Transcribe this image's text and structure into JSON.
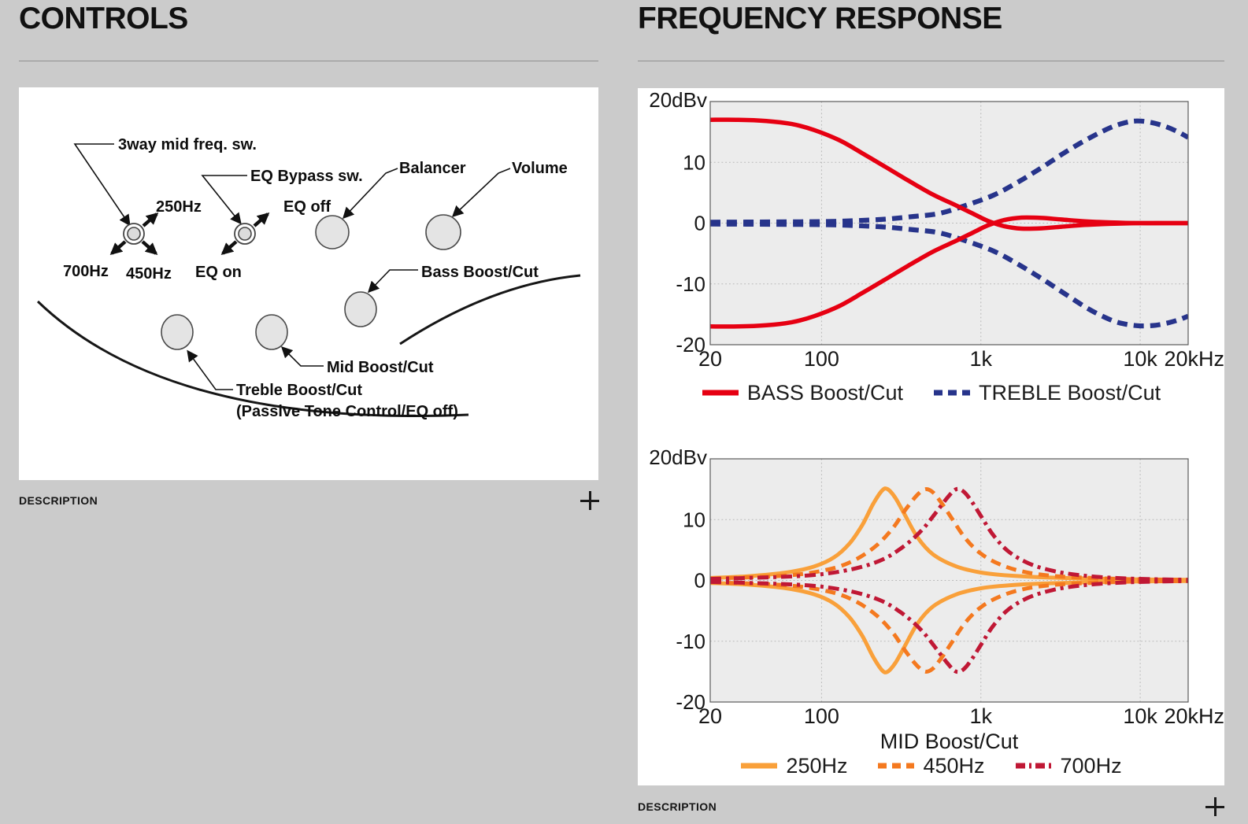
{
  "page": {
    "background": "#cbcbcb",
    "panel_background": "#ffffff"
  },
  "controls": {
    "title": "CONTROLS",
    "description_label": "DESCRIPTION",
    "expand_icon": "plus",
    "diagram": {
      "labels": {
        "threeway": "3way mid freq. sw.",
        "f250": "250Hz",
        "f700": "700Hz",
        "f450": "450Hz",
        "eq_bypass": "EQ Bypass sw.",
        "eq_off": "EQ off",
        "eq_on": "EQ on",
        "balancer": "Balancer",
        "volume": "Volume",
        "bass": "Bass Boost/Cut",
        "mid": "Mid Boost/Cut",
        "treble": "Treble Boost/Cut",
        "treble_note": "(Passive Tone Control/EQ off)"
      }
    }
  },
  "frequency_response": {
    "title": "FREQUENCY RESPONSE",
    "description_label": "DESCRIPTION",
    "expand_icon": "plus"
  },
  "chart_data": [
    {
      "type": "line",
      "xscale": "log",
      "xlim": [
        20,
        20000
      ],
      "ylim": [
        -20,
        20
      ],
      "y_unit_label": "20dBv",
      "y_ticks": [
        {
          "v": 10,
          "label": "10"
        },
        {
          "v": 0,
          "label": "0"
        },
        {
          "v": -10,
          "label": "-10"
        },
        {
          "v": -20,
          "label": "-20"
        }
      ],
      "x_ticks": [
        {
          "v": 20,
          "label": "20"
        },
        {
          "v": 100,
          "label": "100"
        },
        {
          "v": 1000,
          "label": "1k"
        },
        {
          "v": 10000,
          "label": "10k"
        },
        {
          "v": 20000,
          "label": "20kHz"
        }
      ],
      "grid_x": [
        100,
        1000,
        10000
      ],
      "grid_y": [
        10,
        0,
        -10
      ],
      "xlabel": "",
      "plot_bg": "#ececec",
      "series": [
        {
          "name": "TREBLE Boost",
          "color": "#27348B",
          "dash": "dashed",
          "width": 6.2,
          "points": [
            [
              20,
              0.15
            ],
            [
              50,
              0.2
            ],
            [
              100,
              0.25
            ],
            [
              160,
              0.4
            ],
            [
              250,
              0.65
            ],
            [
              380,
              1.1
            ],
            [
              550,
              1.6
            ],
            [
              800,
              2.9
            ],
            [
              1200,
              4.6
            ],
            [
              1700,
              6.7
            ],
            [
              2400,
              9.1
            ],
            [
              3400,
              11.7
            ],
            [
              4800,
              14.0
            ],
            [
              6500,
              15.7
            ],
            [
              8000,
              16.5
            ],
            [
              9500,
              16.8
            ],
            [
              11500,
              16.6
            ],
            [
              14000,
              16.0
            ],
            [
              17000,
              15.1
            ],
            [
              20000,
              14.1
            ]
          ]
        },
        {
          "name": "TREBLE Cut",
          "color": "#27348B",
          "dash": "dashed",
          "width": 6.2,
          "points": [
            [
              20,
              -0.15
            ],
            [
              50,
              -0.2
            ],
            [
              100,
              -0.25
            ],
            [
              160,
              -0.4
            ],
            [
              250,
              -0.65
            ],
            [
              380,
              -1.1
            ],
            [
              550,
              -1.6
            ],
            [
              800,
              -2.9
            ],
            [
              1200,
              -4.6
            ],
            [
              1700,
              -6.7
            ],
            [
              2400,
              -9.1
            ],
            [
              3400,
              -11.7
            ],
            [
              4800,
              -14.2
            ],
            [
              6500,
              -15.9
            ],
            [
              8000,
              -16.6
            ],
            [
              10000,
              -16.9
            ],
            [
              12500,
              -16.8
            ],
            [
              15000,
              -16.4
            ],
            [
              17500,
              -15.9
            ],
            [
              20000,
              -15.3
            ]
          ]
        },
        {
          "name": "BASS Boost",
          "color": "#E60012",
          "dash": "solid",
          "width": 5.5,
          "points": [
            [
              20,
              17
            ],
            [
              30,
              17
            ],
            [
              45,
              16.8
            ],
            [
              65,
              16.3
            ],
            [
              90,
              15.3
            ],
            [
              130,
              13.6
            ],
            [
              180,
              11.5
            ],
            [
              250,
              9.3
            ],
            [
              350,
              7.0
            ],
            [
              500,
              4.7
            ],
            [
              700,
              2.9
            ],
            [
              900,
              1.5
            ],
            [
              1100,
              0.4
            ],
            [
              1400,
              -0.5
            ],
            [
              1800,
              -0.9
            ],
            [
              2400,
              -0.85
            ],
            [
              3200,
              -0.6
            ],
            [
              4500,
              -0.3
            ],
            [
              6500,
              -0.12
            ],
            [
              10000,
              0
            ],
            [
              20000,
              0
            ]
          ]
        },
        {
          "name": "BASS Cut",
          "color": "#E60012",
          "dash": "solid",
          "width": 5.5,
          "points": [
            [
              20,
              -17
            ],
            [
              30,
              -17
            ],
            [
              45,
              -16.8
            ],
            [
              65,
              -16.3
            ],
            [
              90,
              -15.3
            ],
            [
              130,
              -13.6
            ],
            [
              180,
              -11.5
            ],
            [
              250,
              -9.3
            ],
            [
              350,
              -7.0
            ],
            [
              500,
              -4.7
            ],
            [
              700,
              -2.9
            ],
            [
              900,
              -1.5
            ],
            [
              1100,
              -0.4
            ],
            [
              1400,
              0.5
            ],
            [
              1800,
              0.9
            ],
            [
              2400,
              0.85
            ],
            [
              3200,
              0.6
            ],
            [
              4500,
              0.3
            ],
            [
              6500,
              0.12
            ],
            [
              10000,
              0
            ],
            [
              20000,
              0
            ]
          ]
        }
      ],
      "legend": [
        {
          "label": "BASS Boost/Cut",
          "color": "#E60012",
          "dash": "solid"
        },
        {
          "label": "TREBLE Boost/Cut",
          "color": "#27348B",
          "dash": "dashed"
        }
      ]
    },
    {
      "type": "line",
      "xscale": "log",
      "xlim": [
        20,
        20000
      ],
      "ylim": [
        -20,
        20
      ],
      "y_unit_label": "20dBv",
      "y_ticks": [
        {
          "v": 10,
          "label": "10"
        },
        {
          "v": 0,
          "label": "0"
        },
        {
          "v": -10,
          "label": "-10"
        },
        {
          "v": -20,
          "label": "-20"
        }
      ],
      "x_ticks": [
        {
          "v": 20,
          "label": "20"
        },
        {
          "v": 100,
          "label": "100"
        },
        {
          "v": 1000,
          "label": "1k"
        },
        {
          "v": 10000,
          "label": "10k"
        },
        {
          "v": 20000,
          "label": "20kHz"
        }
      ],
      "grid_x": [
        100,
        1000,
        10000
      ],
      "grid_y": [
        10,
        0,
        -10
      ],
      "xlabel": "MID Boost/Cut",
      "plot_bg": "#ececec",
      "series": [
        {
          "name": "250Hz Boost",
          "color": "#F9A03A",
          "dash": "solid",
          "width": 5,
          "points": [
            [
              20,
              0.4
            ],
            [
              35,
              0.7
            ],
            [
              60,
              1.3
            ],
            [
              90,
              2.3
            ],
            [
              120,
              3.8
            ],
            [
              150,
              6.1
            ],
            [
              180,
              9.1
            ],
            [
              210,
              12.5
            ],
            [
              240,
              14.8
            ],
            [
              260,
              15.0
            ],
            [
              290,
              13.6
            ],
            [
              330,
              11.0
            ],
            [
              400,
              7.1
            ],
            [
              500,
              4.3
            ],
            [
              700,
              2.3
            ],
            [
              1000,
              1.3
            ],
            [
              1500,
              0.8
            ],
            [
              2500,
              0.5
            ],
            [
              5000,
              0.3
            ],
            [
              10000,
              0.15
            ],
            [
              20000,
              0.1
            ]
          ]
        },
        {
          "name": "250Hz Cut",
          "color": "#F9A03A",
          "dash": "solid",
          "width": 5,
          "points": [
            [
              20,
              -0.4
            ],
            [
              35,
              -0.7
            ],
            [
              60,
              -1.3
            ],
            [
              90,
              -2.3
            ],
            [
              120,
              -3.8
            ],
            [
              150,
              -6.1
            ],
            [
              180,
              -9.1
            ],
            [
              210,
              -12.5
            ],
            [
              240,
              -14.8
            ],
            [
              260,
              -15.0
            ],
            [
              290,
              -13.6
            ],
            [
              330,
              -11.0
            ],
            [
              400,
              -7.1
            ],
            [
              500,
              -4.3
            ],
            [
              700,
              -2.3
            ],
            [
              1000,
              -1.3
            ],
            [
              1500,
              -0.8
            ],
            [
              2500,
              -0.5
            ],
            [
              5000,
              -0.3
            ],
            [
              10000,
              -0.15
            ],
            [
              20000,
              -0.1
            ]
          ]
        },
        {
          "name": "450Hz Boost",
          "color": "#F4791F",
          "dash": "dashed",
          "width": 5,
          "points": [
            [
              20,
              0.3
            ],
            [
              60,
              0.8
            ],
            [
              110,
              1.8
            ],
            [
              160,
              3.3
            ],
            [
              220,
              5.7
            ],
            [
              280,
              8.6
            ],
            [
              340,
              11.8
            ],
            [
              400,
              14.1
            ],
            [
              450,
              15.0
            ],
            [
              500,
              14.5
            ],
            [
              560,
              12.9
            ],
            [
              650,
              10.4
            ],
            [
              800,
              6.9
            ],
            [
              1000,
              4.4
            ],
            [
              1300,
              2.7
            ],
            [
              1800,
              1.5
            ],
            [
              2700,
              0.8
            ],
            [
              4500,
              0.45
            ],
            [
              9000,
              0.2
            ],
            [
              20000,
              0.1
            ]
          ]
        },
        {
          "name": "450Hz Cut",
          "color": "#F4791F",
          "dash": "dashed",
          "width": 5,
          "points": [
            [
              20,
              -0.3
            ],
            [
              60,
              -0.8
            ],
            [
              110,
              -1.8
            ],
            [
              160,
              -3.3
            ],
            [
              220,
              -5.7
            ],
            [
              280,
              -8.6
            ],
            [
              340,
              -11.8
            ],
            [
              400,
              -14.1
            ],
            [
              450,
              -15.0
            ],
            [
              500,
              -14.5
            ],
            [
              560,
              -12.9
            ],
            [
              650,
              -10.4
            ],
            [
              800,
              -6.9
            ],
            [
              1000,
              -4.4
            ],
            [
              1300,
              -2.7
            ],
            [
              1800,
              -1.5
            ],
            [
              2700,
              -0.8
            ],
            [
              4500,
              -0.45
            ],
            [
              9000,
              -0.2
            ],
            [
              20000,
              -0.1
            ]
          ]
        },
        {
          "name": "700Hz Boost",
          "color": "#C01835",
          "dash": "dashdot",
          "width": 5,
          "points": [
            [
              20,
              0.25
            ],
            [
              70,
              0.7
            ],
            [
              140,
              1.6
            ],
            [
              230,
              3.2
            ],
            [
              320,
              5.4
            ],
            [
              420,
              8.1
            ],
            [
              520,
              11.1
            ],
            [
              620,
              13.7
            ],
            [
              700,
              15.0
            ],
            [
              780,
              14.6
            ],
            [
              880,
              12.9
            ],
            [
              1000,
              10.6
            ],
            [
              1200,
              7.4
            ],
            [
              1500,
              4.7
            ],
            [
              2000,
              2.8
            ],
            [
              2800,
              1.6
            ],
            [
              4200,
              0.85
            ],
            [
              7000,
              0.4
            ],
            [
              12000,
              0.2
            ],
            [
              20000,
              0.1
            ]
          ]
        },
        {
          "name": "700Hz Cut",
          "color": "#C01835",
          "dash": "dashdot",
          "width": 5,
          "points": [
            [
              20,
              -0.25
            ],
            [
              70,
              -0.7
            ],
            [
              140,
              -1.6
            ],
            [
              230,
              -3.2
            ],
            [
              320,
              -5.4
            ],
            [
              420,
              -8.1
            ],
            [
              520,
              -11.1
            ],
            [
              620,
              -13.7
            ],
            [
              700,
              -15.0
            ],
            [
              780,
              -14.6
            ],
            [
              880,
              -12.9
            ],
            [
              1000,
              -10.6
            ],
            [
              1200,
              -7.4
            ],
            [
              1500,
              -4.7
            ],
            [
              2000,
              -2.8
            ],
            [
              2800,
              -1.6
            ],
            [
              4200,
              -0.85
            ],
            [
              7000,
              -0.4
            ],
            [
              12000,
              -0.2
            ],
            [
              20000,
              -0.1
            ]
          ]
        }
      ],
      "legend": [
        {
          "label": "250Hz",
          "color": "#F9A03A",
          "dash": "solid"
        },
        {
          "label": "450Hz",
          "color": "#F4791F",
          "dash": "dashed"
        },
        {
          "label": "700Hz",
          "color": "#C01835",
          "dash": "dashdot"
        }
      ]
    }
  ]
}
